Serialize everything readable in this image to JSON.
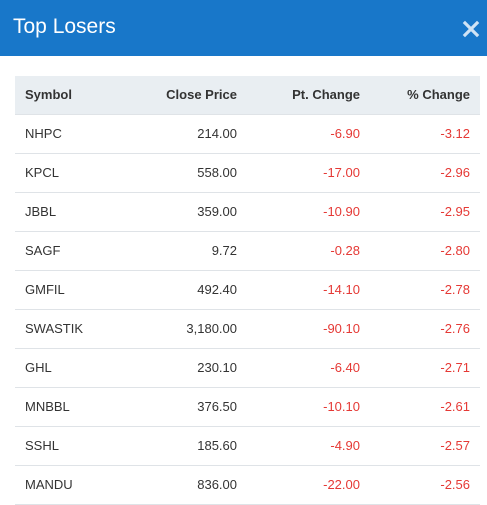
{
  "modal": {
    "title": "Top Losers",
    "close_glyph": "✖"
  },
  "table": {
    "headers": [
      "Symbol",
      "Close Price",
      "Pt. Change",
      "% Change"
    ],
    "rows": [
      {
        "symbol": "NHPC",
        "close": "214.00",
        "pt": "-6.90",
        "pct": "-3.12"
      },
      {
        "symbol": "KPCL",
        "close": "558.00",
        "pt": "-17.00",
        "pct": "-2.96"
      },
      {
        "symbol": "JBBL",
        "close": "359.00",
        "pt": "-10.90",
        "pct": "-2.95"
      },
      {
        "symbol": "SAGF",
        "close": "9.72",
        "pt": "-0.28",
        "pct": "-2.80"
      },
      {
        "symbol": "GMFIL",
        "close": "492.40",
        "pt": "-14.10",
        "pct": "-2.78"
      },
      {
        "symbol": "SWASTIK",
        "close": "3,180.00",
        "pt": "-90.10",
        "pct": "-2.76"
      },
      {
        "symbol": "GHL",
        "close": "230.10",
        "pt": "-6.40",
        "pct": "-2.71"
      },
      {
        "symbol": "MNBBL",
        "close": "376.50",
        "pt": "-10.10",
        "pct": "-2.61"
      },
      {
        "symbol": "SSHL",
        "close": "185.60",
        "pt": "-4.90",
        "pct": "-2.57"
      },
      {
        "symbol": "MANDU",
        "close": "836.00",
        "pt": "-22.00",
        "pct": "-2.56"
      }
    ]
  },
  "colors": {
    "header_bg": "#1877c9",
    "negative": "#e53935",
    "table_header_bg": "#e9eef2"
  }
}
